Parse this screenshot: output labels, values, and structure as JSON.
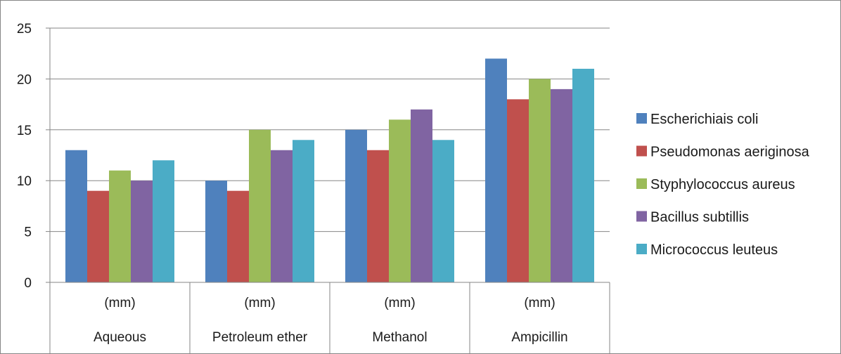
{
  "chart_data": {
    "type": "bar",
    "categories": [
      {
        "unit": "(mm)",
        "name": "Aqueous"
      },
      {
        "unit": "(mm)",
        "name": "Petroleum ether"
      },
      {
        "unit": "(mm)",
        "name": "Methanol"
      },
      {
        "unit": "(mm)",
        "name": "Ampicillin"
      }
    ],
    "series": [
      {
        "name": "Escherichiais coli",
        "color": "#4f81bd",
        "values": [
          13,
          10,
          15,
          22
        ]
      },
      {
        "name": "Pseudomonas aeriginosa",
        "color": "#c0504d",
        "values": [
          9,
          9,
          13,
          18
        ]
      },
      {
        "name": "Styphylococcus aureus",
        "color": "#9bbb59",
        "values": [
          11,
          15,
          16,
          20
        ]
      },
      {
        "name": "Bacillus subtillis",
        "color": "#8064a2",
        "values": [
          10,
          13,
          17,
          19
        ]
      },
      {
        "name": "Micrococcus leuteus",
        "color": "#4bacc6",
        "values": [
          12,
          14,
          14,
          21
        ]
      }
    ],
    "ylim": [
      0,
      25
    ],
    "yticks": [
      "0",
      "5",
      "10",
      "15",
      "20",
      "25"
    ],
    "grid": true,
    "legend": "right"
  }
}
